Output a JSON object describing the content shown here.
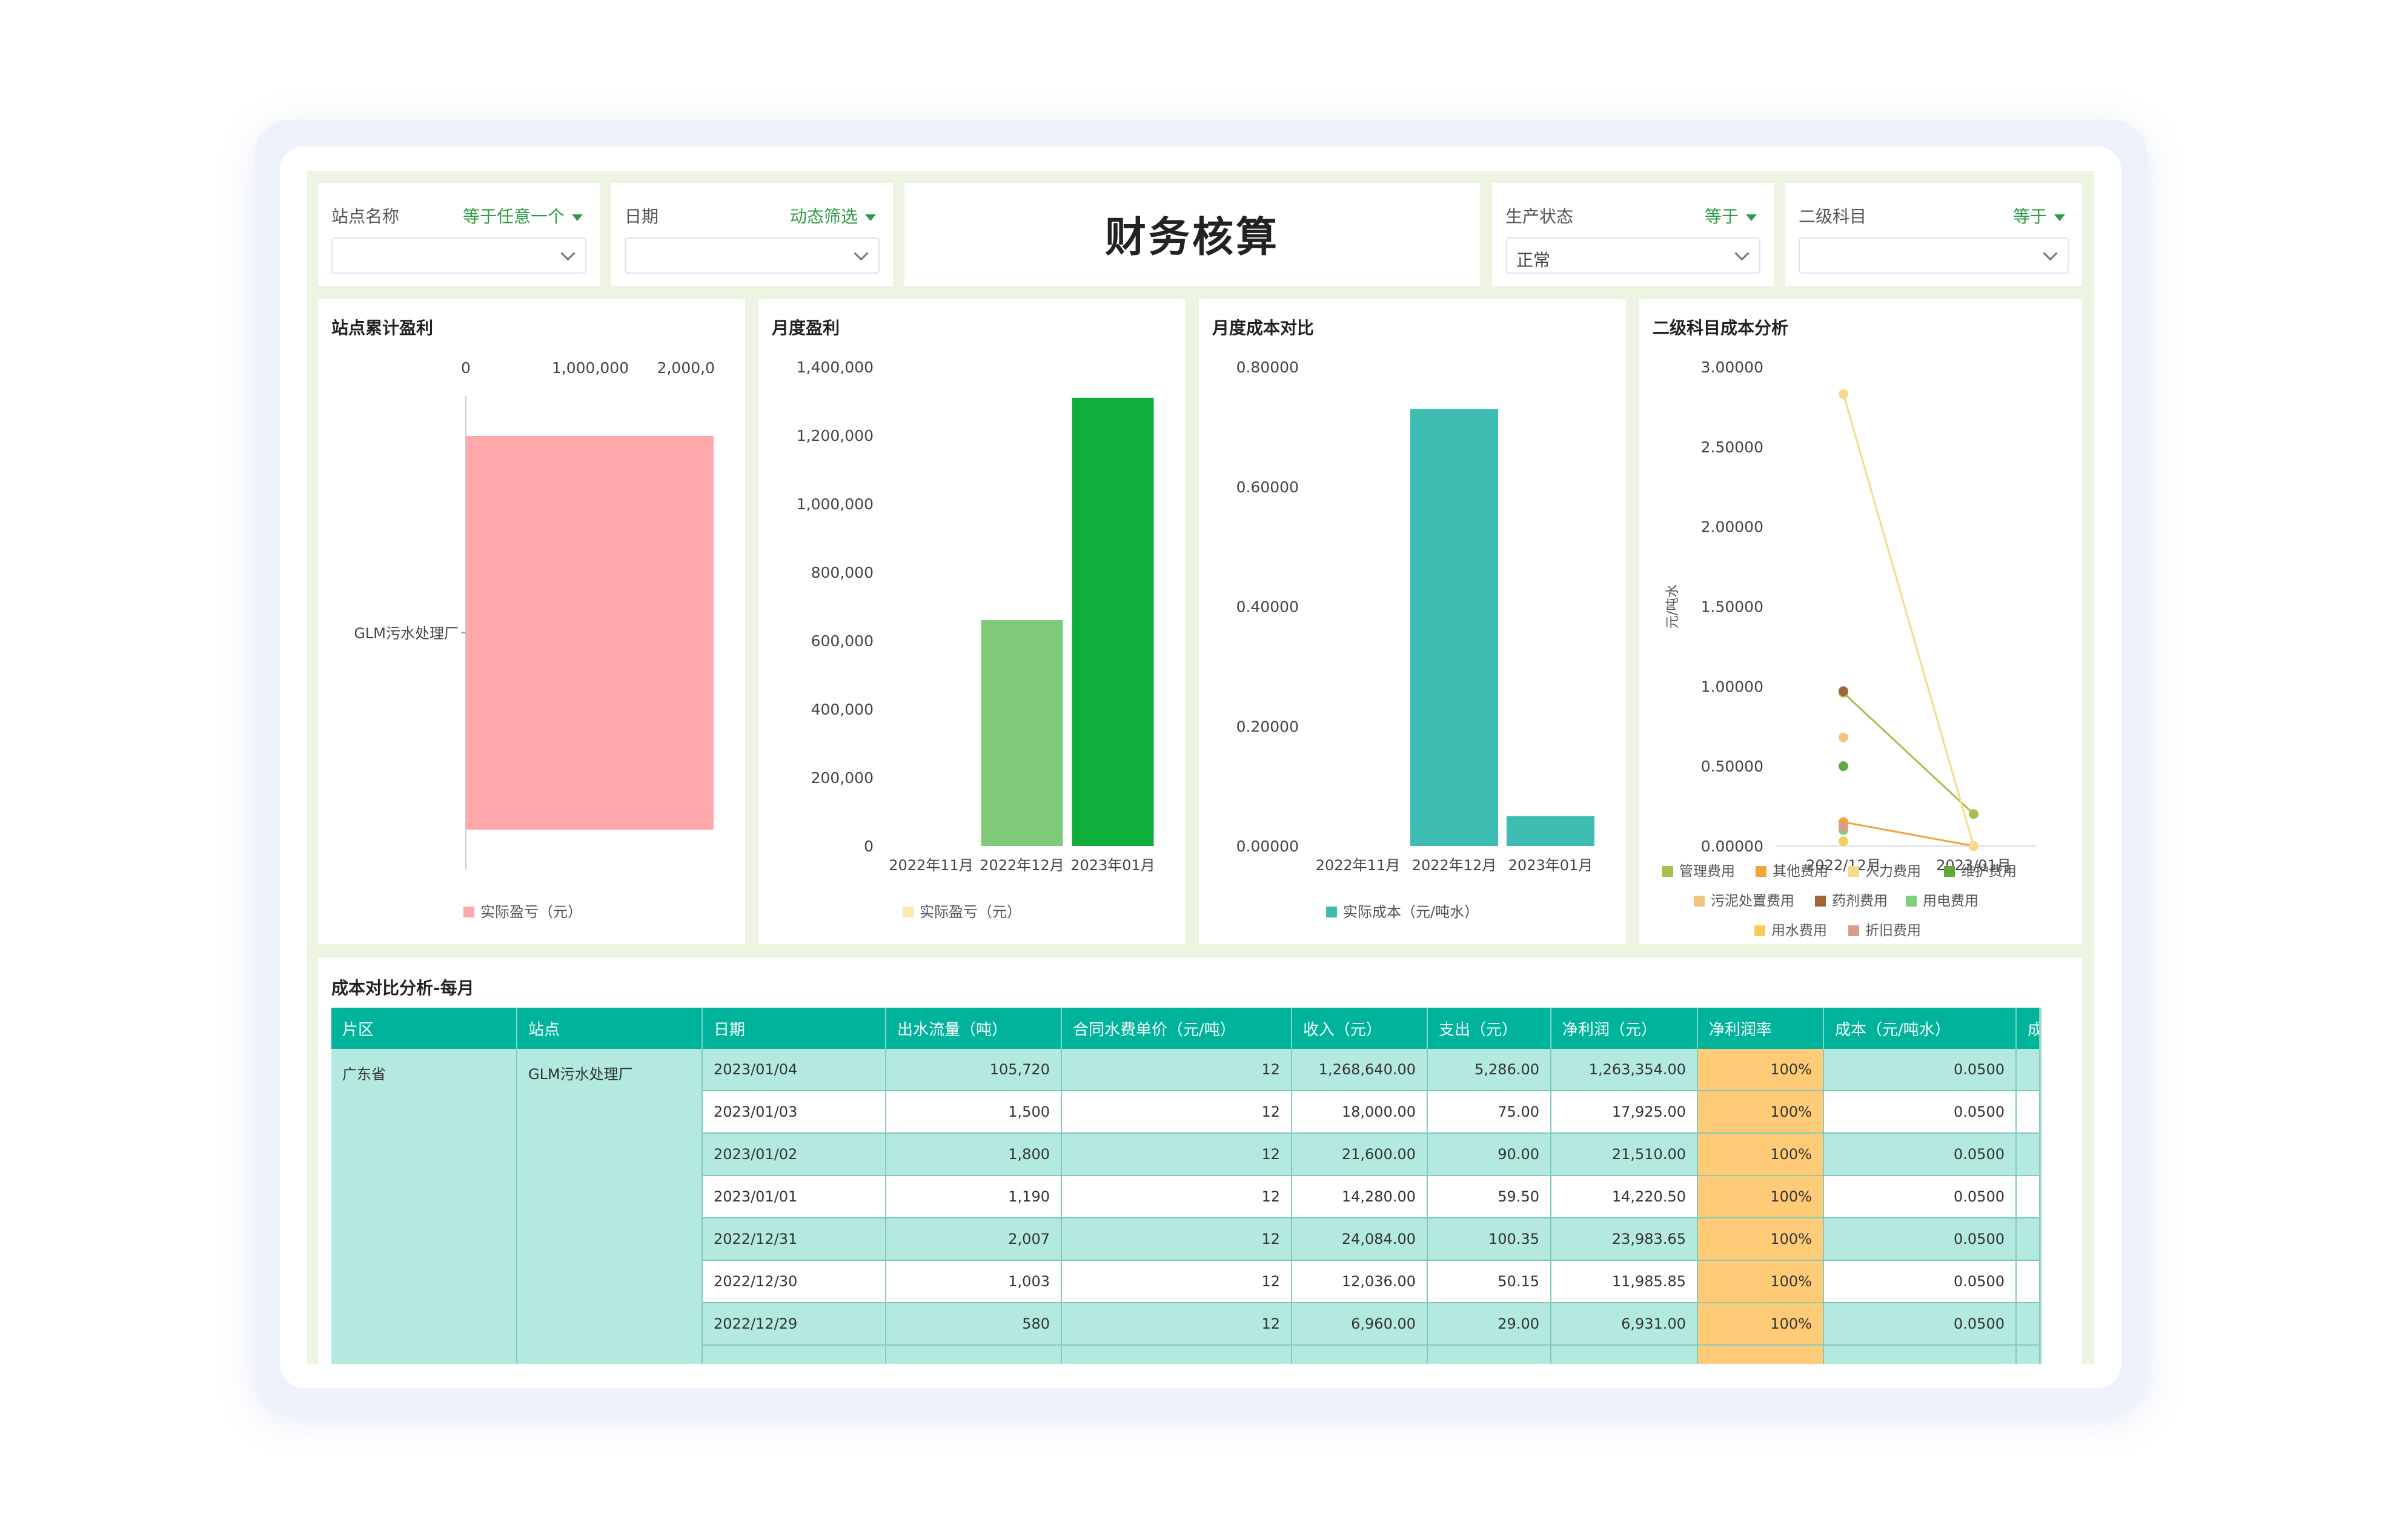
{
  "filters": [
    {
      "label": "站点名称",
      "mode": "等于任意一个",
      "value": ""
    },
    {
      "label": "日期",
      "mode": "动态筛选",
      "value": ""
    },
    {
      "label": "生产状态",
      "mode": "等于",
      "value": "正常"
    },
    {
      "label": "二级科目",
      "mode": "等于",
      "value": ""
    }
  ],
  "dashboard_title": "财务核算",
  "chart_data": [
    {
      "type": "bar",
      "orientation": "horizontal",
      "title": "站点累计盈利",
      "categories": [
        "GLM污水处理厂"
      ],
      "series": [
        {
          "name": "实际盈亏（元）",
          "values": [
            1990000
          ]
        }
      ],
      "x_ticks": [
        "0",
        "1,000,000",
        "2,000,0"
      ],
      "xlim": [
        0,
        2000000
      ],
      "color": "#ffa8ab",
      "legend": "bottom"
    },
    {
      "type": "bar",
      "title": "月度盈利",
      "categories": [
        "2022年11月",
        "2022年12月",
        "2023年01月"
      ],
      "series": [
        {
          "name": "实际盈亏（元）",
          "values": [
            0,
            660000,
            1310000
          ]
        }
      ],
      "y_ticks": [
        "0",
        "200,000",
        "400,000",
        "600,000",
        "800,000",
        "1,000,000",
        "1,200,000",
        "1,400,000"
      ],
      "ylim": [
        0,
        1400000
      ],
      "colors": [
        "#7fca78",
        "#7fca78",
        "#0fad3c"
      ],
      "legend": "bottom"
    },
    {
      "type": "bar",
      "title": "月度成本对比",
      "categories": [
        "2022年11月",
        "2022年12月",
        "2023年01月"
      ],
      "series": [
        {
          "name": "实际成本（元/吨水）",
          "values": [
            0,
            0.73,
            0.05
          ]
        }
      ],
      "y_ticks": [
        "0.00000",
        "0.20000",
        "0.40000",
        "0.60000",
        "0.80000"
      ],
      "ylim": [
        0,
        0.8
      ],
      "color": "#3dbdb2",
      "legend": "bottom"
    },
    {
      "type": "scatter",
      "title": "二级科目成本分析",
      "ylabel": "元/吨水",
      "categories": [
        "2022/12月",
        "2023/01月"
      ],
      "y_ticks": [
        "0.00000",
        "0.50000",
        "1.00000",
        "1.50000",
        "2.00000",
        "2.50000",
        "3.00000"
      ],
      "ylim": [
        0,
        3
      ],
      "series": [
        {
          "name": "管理费用",
          "color": "#a6c04d",
          "values": [
            0.96,
            0.2
          ]
        },
        {
          "name": "其他费用",
          "color": "#f4a23b",
          "values": [
            0.15,
            0
          ]
        },
        {
          "name": "人力费用",
          "color": "#f6d98a",
          "values": [
            2.83,
            0
          ]
        },
        {
          "name": "维护费用",
          "color": "#5faa3e",
          "values": [
            0.5,
            null
          ]
        },
        {
          "name": "污泥处置费用",
          "color": "#f3c47b",
          "values": [
            0.68,
            null
          ]
        },
        {
          "name": "药剂费用",
          "color": "#a0643b",
          "values": [
            0.97,
            null
          ]
        },
        {
          "name": "用电费用",
          "color": "#7bd07a",
          "values": [
            0.1,
            null
          ]
        },
        {
          "name": "用水费用",
          "color": "#f7cd5c",
          "values": [
            0.03,
            null
          ]
        },
        {
          "name": "折旧费用",
          "color": "#d99d8e",
          "values": [
            0.12,
            null
          ]
        }
      ],
      "legend": "bottom"
    }
  ],
  "table": {
    "title": "成本对比分析-每月",
    "headers": [
      "片区",
      "站点",
      "日期",
      "出水流量（吨）",
      "合同水费单价（元/吨）",
      "收入（元）",
      "支出（元）",
      "净利润（元）",
      "净利润率",
      "成本（元/吨水）",
      "成本"
    ],
    "region": "广东省",
    "site": "GLM污水处理厂",
    "rows": [
      {
        "date": "2023/01/04",
        "flow": "105,720",
        "price": "12",
        "income": "1,268,640.00",
        "expense": "5,286.00",
        "profit": "1,263,354.00",
        "rate": "100%",
        "cost": "0.0500"
      },
      {
        "date": "2023/01/03",
        "flow": "1,500",
        "price": "12",
        "income": "18,000.00",
        "expense": "75.00",
        "profit": "17,925.00",
        "rate": "100%",
        "cost": "0.0500"
      },
      {
        "date": "2023/01/02",
        "flow": "1,800",
        "price": "12",
        "income": "21,600.00",
        "expense": "90.00",
        "profit": "21,510.00",
        "rate": "100%",
        "cost": "0.0500"
      },
      {
        "date": "2023/01/01",
        "flow": "1,190",
        "price": "12",
        "income": "14,280.00",
        "expense": "59.50",
        "profit": "14,220.50",
        "rate": "100%",
        "cost": "0.0500"
      },
      {
        "date": "2022/12/31",
        "flow": "2,007",
        "price": "12",
        "income": "24,084.00",
        "expense": "100.35",
        "profit": "23,983.65",
        "rate": "100%",
        "cost": "0.0500"
      },
      {
        "date": "2022/12/30",
        "flow": "1,003",
        "price": "12",
        "income": "12,036.00",
        "expense": "50.15",
        "profit": "11,985.85",
        "rate": "100%",
        "cost": "0.0500"
      },
      {
        "date": "2022/12/29",
        "flow": "580",
        "price": "12",
        "income": "6,960.00",
        "expense": "29.00",
        "profit": "6,931.00",
        "rate": "100%",
        "cost": "0.0500"
      }
    ]
  }
}
